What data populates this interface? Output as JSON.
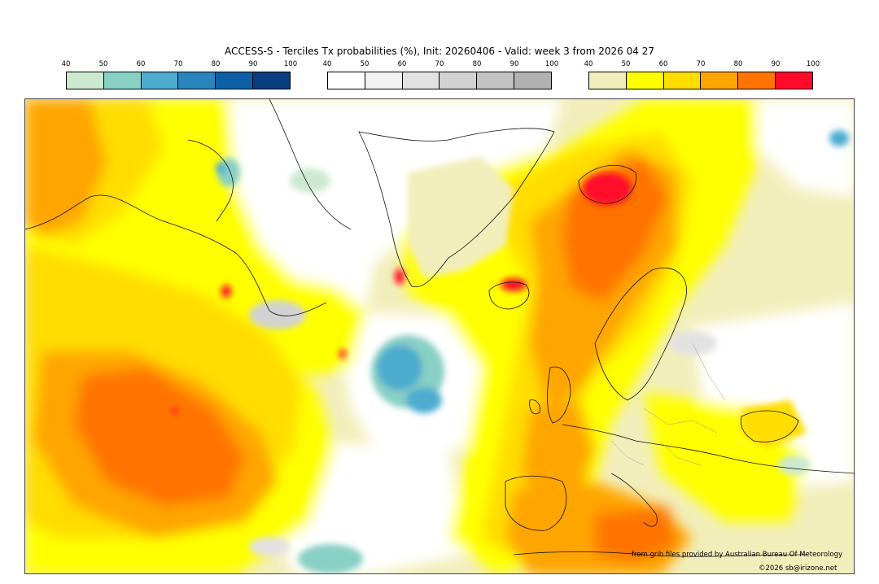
{
  "title": "ACCESS-S - Terciles Tx probabilities (%), Init: 20260406 - Valid: week 3 from 2026 04 27",
  "legends": {
    "below": {
      "ticks": [
        "40",
        "50",
        "60",
        "70",
        "80",
        "90",
        "100"
      ],
      "colors": [
        "#cce9d0",
        "#88cfc4",
        "#4eacd0",
        "#2b85bd",
        "#0d5fa6",
        "#083e7f"
      ]
    },
    "normal": {
      "ticks": [
        "40",
        "50",
        "60",
        "70",
        "80",
        "90",
        "100"
      ],
      "colors": [
        "#ffffff",
        "#f1f1f1",
        "#e2e2e2",
        "#d2d2d2",
        "#c2c2c2",
        "#b1b1b1"
      ]
    },
    "above": {
      "ticks": [
        "40",
        "50",
        "60",
        "70",
        "80",
        "90",
        "100"
      ],
      "colors": [
        "#f2eebb",
        "#ffff00",
        "#ffdd00",
        "#ffa500",
        "#ff7300",
        "#ff0a2a"
      ]
    }
  },
  "credit": "from grib files provided by Australian Bureau Of Meteorology",
  "copyright": "©2026 sb@irizone.net"
}
